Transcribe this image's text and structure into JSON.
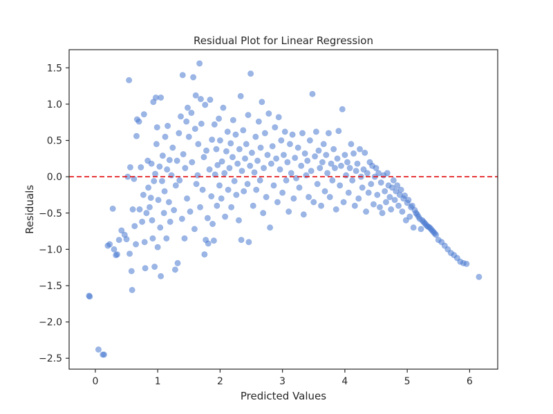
{
  "chart_data": {
    "type": "scatter",
    "title": "Residual Plot for Linear Regression",
    "xlabel": "Predicted Values",
    "ylabel": "Residuals",
    "xlim": [
      -0.42,
      6.45
    ],
    "ylim": [
      -2.65,
      1.75
    ],
    "xticks": [
      0,
      1,
      2,
      3,
      4,
      5,
      6
    ],
    "xtick_labels": [
      "0",
      "1",
      "2",
      "3",
      "4",
      "5",
      "6"
    ],
    "yticks": [
      -2.5,
      -2.0,
      -1.5,
      -1.0,
      -0.5,
      0.0,
      0.5,
      1.0,
      1.5
    ],
    "ytick_labels": [
      "−2.5",
      "−2.0",
      "−1.5",
      "−1.0",
      "−0.5",
      "0.0",
      "0.5",
      "1.0",
      "1.5"
    ],
    "grid": false,
    "marker_color": "#4878d0",
    "marker_alpha": 0.55,
    "reference_line": {
      "y": 0.0,
      "color": "#e31a1c",
      "style": "dashed"
    },
    "points": [
      [
        -0.1,
        -1.64
      ],
      [
        -0.09,
        -1.65
      ],
      [
        0.05,
        -2.38
      ],
      [
        0.12,
        -2.45
      ],
      [
        0.14,
        -2.45
      ],
      [
        0.2,
        -0.95
      ],
      [
        0.23,
        -0.93
      ],
      [
        0.28,
        -0.44
      ],
      [
        0.3,
        -1.0
      ],
      [
        0.33,
        -1.08
      ],
      [
        0.35,
        -1.07
      ],
      [
        0.38,
        -0.87
      ],
      [
        0.42,
        -0.74
      ],
      [
        0.47,
        -0.8
      ],
      [
        0.5,
        -0.86
      ],
      [
        0.52,
        0.0
      ],
      [
        0.54,
        1.33
      ],
      [
        0.56,
        0.13
      ],
      [
        0.55,
        -1.06
      ],
      [
        0.58,
        -1.3
      ],
      [
        0.59,
        -1.56
      ],
      [
        0.6,
        -0.45
      ],
      [
        0.62,
        -0.03
      ],
      [
        0.63,
        -0.68
      ],
      [
        0.65,
        -0.93
      ],
      [
        0.66,
        0.56
      ],
      [
        0.67,
        0.79
      ],
      [
        0.7,
        0.76
      ],
      [
        0.71,
        -0.45
      ],
      [
        0.73,
        0.13
      ],
      [
        0.75,
        -0.62
      ],
      [
        0.77,
        -0.25
      ],
      [
        0.78,
        0.86
      ],
      [
        0.79,
        -0.9
      ],
      [
        0.8,
        -1.26
      ],
      [
        0.82,
        -0.5
      ],
      [
        0.84,
        0.22
      ],
      [
        0.85,
        -0.15
      ],
      [
        0.87,
        -0.42
      ],
      [
        0.89,
        -0.29
      ],
      [
        0.9,
        0.18
      ],
      [
        0.91,
        -0.6
      ],
      [
        0.92,
        -0.85
      ],
      [
        0.93,
        1.03
      ],
      [
        0.94,
        -0.06
      ],
      [
        0.95,
        -1.24
      ],
      [
        0.96,
        0.04
      ],
      [
        0.97,
        1.09
      ],
      [
        0.98,
        0.45
      ],
      [
        0.99,
        0.68
      ],
      [
        1.0,
        -0.97
      ],
      [
        1.01,
        -0.32
      ],
      [
        1.03,
        0.14
      ],
      [
        1.04,
        -0.7
      ],
      [
        1.05,
        1.09
      ],
      [
        1.05,
        -1.37
      ],
      [
        1.07,
        -0.06
      ],
      [
        1.08,
        0.29
      ],
      [
        1.1,
        -0.5
      ],
      [
        1.11,
        -0.2
      ],
      [
        1.12,
        0.55
      ],
      [
        1.14,
        -0.85
      ],
      [
        1.15,
        0.1
      ],
      [
        1.16,
        0.7
      ],
      [
        1.18,
        -0.35
      ],
      [
        1.19,
        0.23
      ],
      [
        1.2,
        -0.62
      ],
      [
        1.22,
        0.02
      ],
      [
        1.24,
        0.4
      ],
      [
        1.26,
        -0.46
      ],
      [
        1.28,
        -1.28
      ],
      [
        1.29,
        -0.12
      ],
      [
        1.31,
        0.22
      ],
      [
        1.32,
        -1.19
      ],
      [
        1.34,
        0.6
      ],
      [
        1.35,
        -0.05
      ],
      [
        1.37,
        0.83
      ],
      [
        1.39,
        -0.58
      ],
      [
        1.4,
        1.4
      ],
      [
        1.41,
        0.31
      ],
      [
        1.43,
        -0.85
      ],
      [
        1.44,
        0.12
      ],
      [
        1.46,
        0.76
      ],
      [
        1.47,
        -0.3
      ],
      [
        1.48,
        0.95
      ],
      [
        1.5,
        0.55
      ],
      [
        1.52,
        -0.48
      ],
      [
        1.54,
        0.88
      ],
      [
        1.55,
        0.2
      ],
      [
        1.57,
        1.37
      ],
      [
        1.59,
        -0.72
      ],
      [
        1.6,
        0.66
      ],
      [
        1.61,
        1.12
      ],
      [
        1.62,
        -0.1
      ],
      [
        1.64,
        0.02
      ],
      [
        1.65,
        0.45
      ],
      [
        1.67,
        1.56
      ],
      [
        1.68,
        -0.42
      ],
      [
        1.69,
        1.07
      ],
      [
        1.7,
        0.73
      ],
      [
        1.72,
        -0.18
      ],
      [
        1.74,
        0.27
      ],
      [
        1.75,
        -1.07
      ],
      [
        1.76,
        0.99
      ],
      [
        1.77,
        -0.87
      ],
      [
        1.78,
        0.36
      ],
      [
        1.8,
        -0.57
      ],
      [
        1.81,
        -0.92
      ],
      [
        1.83,
        0.1
      ],
      [
        1.84,
        1.06
      ],
      [
        1.86,
        -0.27
      ],
      [
        1.87,
        0.51
      ],
      [
        1.88,
        -0.65
      ],
      [
        1.9,
        -0.88
      ],
      [
        1.91,
        0.72
      ],
      [
        1.92,
        0.03
      ],
      [
        1.94,
        0.38
      ],
      [
        1.95,
        -0.4
      ],
      [
        1.96,
        0.16
      ],
      [
        1.98,
        0.8
      ],
      [
        1.99,
        -0.12
      ],
      [
        2.0,
        0.5
      ],
      [
        2.02,
        -0.3
      ],
      [
        2.03,
        0.21
      ],
      [
        2.05,
        0.95
      ],
      [
        2.07,
        0.05
      ],
      [
        2.08,
        -0.55
      ],
      [
        2.1,
        0.35
      ],
      [
        2.12,
        0.62
      ],
      [
        2.13,
        -0.18
      ],
      [
        2.15,
        0.12
      ],
      [
        2.17,
        0.46
      ],
      [
        2.18,
        -0.42
      ],
      [
        2.2,
        0.27
      ],
      [
        2.21,
        0.78
      ],
      [
        2.23,
        -0.06
      ],
      [
        2.25,
        0.58
      ],
      [
        2.26,
        -0.25
      ],
      [
        2.28,
        0.18
      ],
      [
        2.3,
        -0.6
      ],
      [
        2.31,
        0.38
      ],
      [
        2.33,
        1.11
      ],
      [
        2.34,
        -0.87
      ],
      [
        2.35,
        0.08
      ],
      [
        2.37,
        0.64
      ],
      [
        2.38,
        -0.2
      ],
      [
        2.4,
        0.25
      ],
      [
        2.42,
        0.45
      ],
      [
        2.44,
        -0.1
      ],
      [
        2.45,
        0.85
      ],
      [
        2.46,
        -0.9
      ],
      [
        2.48,
        0.15
      ],
      [
        2.49,
        1.42
      ],
      [
        2.51,
        0.33
      ],
      [
        2.53,
        -0.4
      ],
      [
        2.55,
        0.06
      ],
      [
        2.57,
        0.55
      ],
      [
        2.58,
        -0.18
      ],
      [
        2.6,
        0.22
      ],
      [
        2.62,
        0.76
      ],
      [
        2.64,
        -0.05
      ],
      [
        2.65,
        0.4
      ],
      [
        2.67,
        1.03
      ],
      [
        2.69,
        -0.5
      ],
      [
        2.7,
        0.12
      ],
      [
        2.72,
        0.6
      ],
      [
        2.74,
        -0.28
      ],
      [
        2.76,
        0.3
      ],
      [
        2.78,
        0.87
      ],
      [
        2.8,
        -0.7
      ],
      [
        2.82,
        0.18
      ],
      [
        2.84,
        0.42
      ],
      [
        2.86,
        -0.12
      ],
      [
        2.88,
        0.68
      ],
      [
        2.9,
        0.25
      ],
      [
        2.92,
        -0.35
      ],
      [
        2.94,
        0.82
      ],
      [
        2.96,
        0.1
      ],
      [
        2.98,
        0.5
      ],
      [
        3.0,
        -0.22
      ],
      [
        3.02,
        0.3
      ],
      [
        3.04,
        0.62
      ],
      [
        3.06,
        -0.05
      ],
      [
        3.08,
        0.2
      ],
      [
        3.1,
        -0.48
      ],
      [
        3.12,
        0.45
      ],
      [
        3.14,
        0.05
      ],
      [
        3.16,
        0.58
      ],
      [
        3.18,
        -0.3
      ],
      [
        3.2,
        0.26
      ],
      [
        3.22,
        -0.02
      ],
      [
        3.25,
        0.4
      ],
      [
        3.27,
        -0.15
      ],
      [
        3.3,
        0.15
      ],
      [
        3.32,
        0.6
      ],
      [
        3.34,
        -0.52
      ],
      [
        3.36,
        0.32
      ],
      [
        3.38,
        0.02
      ],
      [
        3.4,
        0.22
      ],
      [
        3.42,
        -0.28
      ],
      [
        3.44,
        0.5
      ],
      [
        3.46,
        0.08
      ],
      [
        3.48,
        1.14
      ],
      [
        3.5,
        -0.35
      ],
      [
        3.52,
        0.28
      ],
      [
        3.54,
        0.62
      ],
      [
        3.56,
        -0.1
      ],
      [
        3.58,
        0.36
      ],
      [
        3.6,
        0.12
      ],
      [
        3.62,
        -0.4
      ],
      [
        3.64,
        0.2
      ],
      [
        3.66,
        0.45
      ],
      [
        3.68,
        -0.2
      ],
      [
        3.7,
        0.3
      ],
      [
        3.72,
        0.05
      ],
      [
        3.74,
        0.6
      ],
      [
        3.76,
        -0.28
      ],
      [
        3.78,
        0.18
      ],
      [
        3.8,
        -0.05
      ],
      [
        3.82,
        0.38
      ],
      [
        3.84,
        0.12
      ],
      [
        3.86,
        -0.45
      ],
      [
        3.88,
        0.25
      ],
      [
        3.9,
        0.63
      ],
      [
        3.92,
        -0.12
      ],
      [
        3.94,
        0.15
      ],
      [
        3.96,
        0.93
      ],
      [
        3.98,
        -0.35
      ],
      [
        4.0,
        0.3
      ],
      [
        4.02,
        0.02
      ],
      [
        4.04,
        0.2
      ],
      [
        4.06,
        -0.22
      ],
      [
        4.08,
        0.12
      ],
      [
        4.1,
        0.45
      ],
      [
        4.12,
        -0.05
      ],
      [
        4.14,
        0.32
      ],
      [
        4.16,
        -0.4
      ],
      [
        4.18,
        0.08
      ],
      [
        4.2,
        0.18
      ],
      [
        4.22,
        -0.3
      ],
      [
        4.24,
        0.38
      ],
      [
        4.26,
        0.0
      ],
      [
        4.28,
        -0.15
      ],
      [
        4.3,
        0.1
      ],
      [
        4.32,
        0.33
      ],
      [
        4.34,
        -0.48
      ],
      [
        4.36,
        0.05
      ],
      [
        4.38,
        -0.22
      ],
      [
        4.4,
        0.2
      ],
      [
        4.42,
        -0.1
      ],
      [
        4.44,
        0.15
      ],
      [
        4.46,
        -0.38
      ],
      [
        4.48,
        0.0
      ],
      [
        4.5,
        0.12
      ],
      [
        4.52,
        -0.25
      ],
      [
        4.54,
        0.05
      ],
      [
        4.56,
        -0.42
      ],
      [
        4.58,
        -0.08
      ],
      [
        4.6,
        -0.5
      ],
      [
        4.62,
        0.02
      ],
      [
        4.64,
        -0.2
      ],
      [
        4.66,
        -0.35
      ],
      [
        4.68,
        0.05
      ],
      [
        4.7,
        -0.12
      ],
      [
        4.72,
        -0.28
      ],
      [
        4.74,
        -0.45
      ],
      [
        4.76,
        -0.15
      ],
      [
        4.78,
        -0.05
      ],
      [
        4.8,
        -0.32
      ],
      [
        4.82,
        -0.2
      ],
      [
        4.84,
        -0.12
      ],
      [
        4.86,
        -0.4
      ],
      [
        4.88,
        -0.25
      ],
      [
        4.9,
        -0.18
      ],
      [
        4.92,
        -0.48
      ],
      [
        4.94,
        -0.3
      ],
      [
        4.96,
        -0.26
      ],
      [
        4.98,
        -0.6
      ],
      [
        5.0,
        -0.36
      ],
      [
        5.02,
        -0.32
      ],
      [
        5.04,
        -0.55
      ],
      [
        5.06,
        -0.42
      ],
      [
        5.08,
        -0.4
      ],
      [
        5.1,
        -0.7
      ],
      [
        5.12,
        -0.46
      ],
      [
        5.14,
        -0.5
      ],
      [
        5.16,
        -0.52
      ],
      [
        5.18,
        -0.55
      ],
      [
        5.2,
        -0.58
      ],
      [
        5.22,
        -0.72
      ],
      [
        5.24,
        -0.6
      ],
      [
        5.26,
        -0.62
      ],
      [
        5.28,
        -0.64
      ],
      [
        5.3,
        -0.66
      ],
      [
        5.32,
        -0.68
      ],
      [
        5.34,
        -0.69
      ],
      [
        5.36,
        -0.7
      ],
      [
        5.38,
        -0.72
      ],
      [
        5.4,
        -0.74
      ],
      [
        5.42,
        -0.76
      ],
      [
        5.44,
        -0.78
      ],
      [
        5.46,
        -0.8
      ],
      [
        5.5,
        -0.87
      ],
      [
        5.55,
        -0.9
      ],
      [
        5.6,
        -0.95
      ],
      [
        5.65,
        -1.0
      ],
      [
        5.7,
        -1.05
      ],
      [
        5.75,
        -1.08
      ],
      [
        5.8,
        -1.12
      ],
      [
        5.85,
        -1.17
      ],
      [
        5.9,
        -1.19
      ],
      [
        5.95,
        -1.2
      ],
      [
        6.15,
        -1.38
      ]
    ]
  }
}
